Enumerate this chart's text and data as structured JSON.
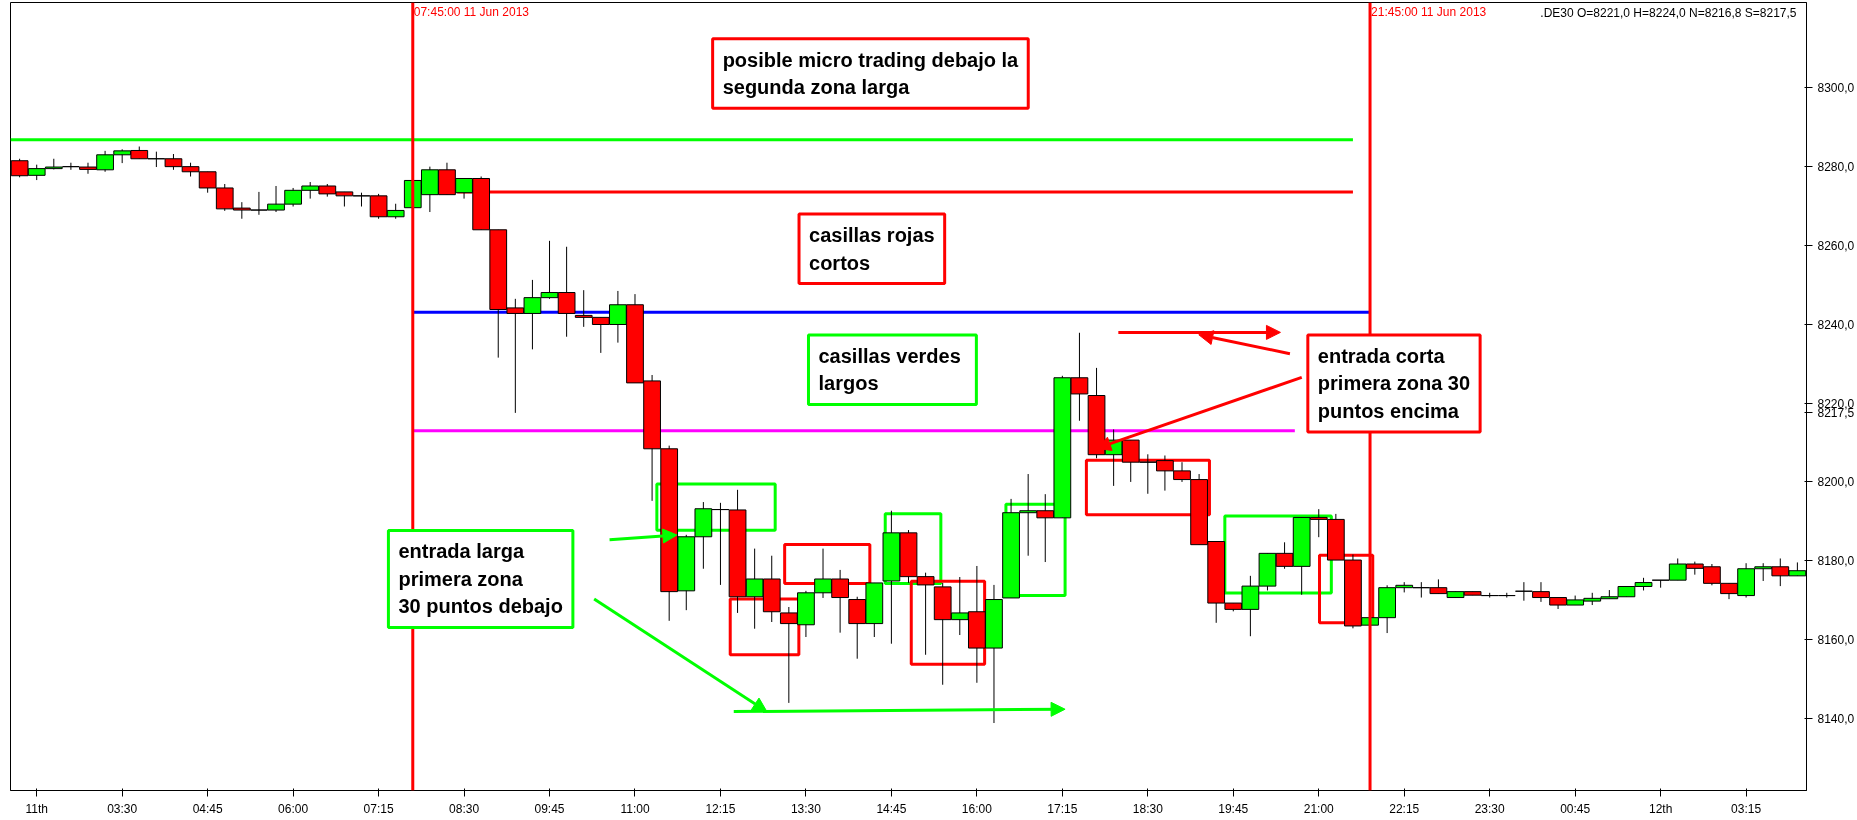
{
  "chart_data": {
    "type": "candlestick",
    "x": [
      "2013-06-11T02:00",
      "2013-06-11T02:15",
      "2013-06-11T02:30",
      "2013-06-11T02:45",
      "2013-06-11T03:00",
      "2013-06-11T03:15",
      "2013-06-11T03:30",
      "2013-06-11T03:45",
      "2013-06-11T04:00",
      "2013-06-11T04:15",
      "2013-06-11T04:30",
      "2013-06-11T04:45",
      "2013-06-11T05:00",
      "2013-06-11T05:15",
      "2013-06-11T05:30",
      "2013-06-11T05:45",
      "2013-06-11T06:00",
      "2013-06-11T06:15",
      "2013-06-11T06:30",
      "2013-06-11T06:45",
      "2013-06-11T07:00",
      "2013-06-11T07:15",
      "2013-06-11T07:30",
      "2013-06-11T07:45",
      "2013-06-11T08:00",
      "2013-06-11T08:15",
      "2013-06-11T08:30",
      "2013-06-11T08:45",
      "2013-06-11T09:00",
      "2013-06-11T09:15",
      "2013-06-11T09:30",
      "2013-06-11T09:45",
      "2013-06-11T10:00",
      "2013-06-11T10:15",
      "2013-06-11T10:30",
      "2013-06-11T10:45",
      "2013-06-11T11:00",
      "2013-06-11T11:15",
      "2013-06-11T11:30",
      "2013-06-11T11:45",
      "2013-06-11T12:00",
      "2013-06-11T12:15",
      "2013-06-11T12:30",
      "2013-06-11T12:45",
      "2013-06-11T13:00",
      "2013-06-11T13:15",
      "2013-06-11T13:30",
      "2013-06-11T13:45",
      "2013-06-11T14:00",
      "2013-06-11T14:15",
      "2013-06-11T14:30",
      "2013-06-11T14:45",
      "2013-06-11T15:00",
      "2013-06-11T15:15",
      "2013-06-11T15:30",
      "2013-06-11T15:45",
      "2013-06-11T16:00",
      "2013-06-11T16:15",
      "2013-06-11T16:30",
      "2013-06-11T16:45",
      "2013-06-11T17:00",
      "2013-06-11T17:15",
      "2013-06-11T17:30",
      "2013-06-11T17:45",
      "2013-06-11T18:00",
      "2013-06-11T18:15",
      "2013-06-11T18:30",
      "2013-06-11T18:45",
      "2013-06-11T19:00",
      "2013-06-11T19:15",
      "2013-06-11T19:30",
      "2013-06-11T19:45",
      "2013-06-11T20:00",
      "2013-06-11T20:15",
      "2013-06-11T20:30",
      "2013-06-11T20:45",
      "2013-06-11T21:00",
      "2013-06-11T21:15",
      "2013-06-11T21:30",
      "2013-06-11T21:45",
      "2013-06-11T22:00",
      "2013-06-11T22:15",
      "2013-06-11T22:30",
      "2013-06-11T22:45",
      "2013-06-11T23:00",
      "2013-06-11T23:15",
      "2013-06-11T23:30",
      "2013-06-11T23:45",
      "2013-06-12T00:00",
      "2013-06-12T00:15",
      "2013-06-12T00:30",
      "2013-06-12T00:45",
      "2013-06-12T01:00",
      "2013-06-12T01:15",
      "2013-06-12T01:30",
      "2013-06-12T01:45",
      "2013-06-12T02:00",
      "2013-06-12T02:15",
      "2013-06-12T02:30",
      "2013-06-12T02:45",
      "2013-06-12T03:00",
      "2013-06-12T03:15",
      "2013-06-12T03:30",
      "2013-06-12T03:45",
      "2013-06-12T04:00"
    ],
    "ohlc": [
      [
        8281.4,
        8281.9,
        8277.2,
        8277.6
      ],
      [
        8277.7,
        8280.4,
        8276.5,
        8279.4
      ],
      [
        8279.4,
        8281.9,
        8279.2,
        8279.8
      ],
      [
        8279.9,
        8280.9,
        8279.1,
        8279.9
      ],
      [
        8279.8,
        8280.9,
        8278.1,
        8279.2
      ],
      [
        8279.1,
        8283.9,
        8278.6,
        8282.9
      ],
      [
        8282.9,
        8284.3,
        8280.8,
        8283.9
      ],
      [
        8284.0,
        8285.0,
        8281.9,
        8281.9
      ],
      [
        8281.9,
        8283.7,
        8279.8,
        8281.9
      ],
      [
        8281.9,
        8283.1,
        8279.1,
        8279.9
      ],
      [
        8279.9,
        8280.9,
        8277.4,
        8278.6
      ],
      [
        8278.6,
        8278.6,
        8273.3,
        8274.5
      ],
      [
        8274.5,
        8275.5,
        8268.7,
        8269.2
      ],
      [
        8269.4,
        8270.9,
        8266.7,
        8268.9
      ],
      [
        8268.9,
        8273.5,
        8267.7,
        8268.9
      ],
      [
        8268.9,
        8275.0,
        8268.4,
        8270.4
      ],
      [
        8270.4,
        8274.5,
        8269.8,
        8273.9
      ],
      [
        8273.9,
        8276.0,
        8271.8,
        8275.0
      ],
      [
        8275.0,
        8275.5,
        8272.3,
        8273.0
      ],
      [
        8273.5,
        8273.5,
        8269.8,
        8272.5
      ],
      [
        8272.5,
        8273.3,
        8269.8,
        8272.5
      ],
      [
        8272.5,
        8273.0,
        8266.7,
        8267.2
      ],
      [
        8267.2,
        8270.5,
        8266.7,
        8268.8
      ],
      [
        8269.5,
        8276.4,
        8269.2,
        8276.4
      ],
      [
        8272.8,
        8279.9,
        8268.4,
        8279.1
      ],
      [
        8279.1,
        8280.9,
        8272.8,
        8272.8
      ],
      [
        8273.3,
        8276.9,
        8271.8,
        8276.9
      ],
      [
        8276.9,
        8277.4,
        8263.9,
        8263.9
      ],
      [
        8263.9,
        8263.9,
        8231.5,
        8243.7
      ],
      [
        8244.1,
        8246.4,
        8217.5,
        8242.7
      ],
      [
        8242.7,
        8251.2,
        8233.6,
        8246.7
      ],
      [
        8246.7,
        8261.1,
        8246.4,
        8248.0
      ],
      [
        8248.0,
        8259.6,
        8236.8,
        8242.7
      ],
      [
        8242.2,
        8248.6,
        8239.3,
        8241.7
      ],
      [
        8241.7,
        8241.7,
        8232.7,
        8239.9
      ],
      [
        8239.9,
        8248.4,
        8235.3,
        8244.9
      ],
      [
        8244.9,
        8247.6,
        8225.1,
        8225.1
      ],
      [
        8225.6,
        8227.1,
        8195.2,
        8208.4
      ],
      [
        8208.4,
        8209.2,
        8164.8,
        8172.2
      ],
      [
        8172.4,
        8186.6,
        8167.5,
        8186.1
      ],
      [
        8186.1,
        8194.9,
        8178.0,
        8193.2
      ],
      [
        8193.0,
        8194.7,
        8173.9,
        8193.0
      ],
      [
        8192.9,
        8198.0,
        8166.8,
        8170.9
      ],
      [
        8170.9,
        8183.1,
        8162.8,
        8175.4
      ],
      [
        8175.4,
        8181.3,
        8164.5,
        8167.1
      ],
      [
        8166.8,
        8168.3,
        8144.0,
        8164.1
      ],
      [
        8163.8,
        8172.4,
        8160.7,
        8171.9
      ],
      [
        8171.9,
        8183.1,
        8170.6,
        8175.4
      ],
      [
        8175.4,
        8177.7,
        8161.8,
        8170.7
      ],
      [
        8170.2,
        8170.9,
        8155.2,
        8164.1
      ],
      [
        8164.1,
        8174.4,
        8160.7,
        8174.4
      ],
      [
        8174.9,
        8192.7,
        8159.0,
        8187.1
      ],
      [
        8187.1,
        8187.8,
        8174.4,
        8176.0
      ],
      [
        8176.0,
        8177.0,
        8156.2,
        8173.9
      ],
      [
        8173.4,
        8174.4,
        8148.6,
        8165.1
      ],
      [
        8165.1,
        8175.9,
        8161.2,
        8166.8
      ],
      [
        8167.1,
        8178.7,
        8149.1,
        8157.9
      ],
      [
        8157.9,
        8173.9,
        8138.9,
        8170.2
      ],
      [
        8170.6,
        8195.7,
        8170.6,
        8192.2
      ],
      [
        8192.2,
        8202.0,
        8181.3,
        8192.7
      ],
      [
        8192.7,
        8196.9,
        8179.7,
        8190.9
      ],
      [
        8190.9,
        8226.9,
        8190.9,
        8226.4
      ],
      [
        8226.4,
        8237.8,
        8215.5,
        8222.3
      ],
      [
        8221.9,
        8228.9,
        8206.0,
        8206.9
      ],
      [
        8206.9,
        8213.3,
        8199.0,
        8210.6
      ],
      [
        8210.6,
        8210.6,
        8200.0,
        8205.0
      ],
      [
        8205.0,
        8207.0,
        8197.0,
        8205.0
      ],
      [
        8205.4,
        8206.7,
        8197.8,
        8202.8
      ],
      [
        8202.8,
        8205.0,
        8200.0,
        8200.6
      ],
      [
        8200.6,
        8202.0,
        8184.1,
        8184.1
      ],
      [
        8184.9,
        8184.9,
        8164.3,
        8169.3
      ],
      [
        8169.3,
        8169.3,
        8167.2,
        8167.7
      ],
      [
        8167.7,
        8176.2,
        8160.9,
        8173.6
      ],
      [
        8173.6,
        8181.9,
        8172.5,
        8181.9
      ],
      [
        8181.9,
        8184.7,
        8178.0,
        8178.6
      ],
      [
        8178.6,
        8191.0,
        8171.4,
        8191.0
      ],
      [
        8191.0,
        8193.1,
        8186.0,
        8190.5
      ],
      [
        8190.5,
        8191.9,
        8180.2,
        8180.2
      ],
      [
        8180.2,
        8181.6,
        8162.9,
        8163.5
      ],
      [
        8163.7,
        8165.6,
        8163.7,
        8165.6
      ],
      [
        8165.6,
        8173.8,
        8161.7,
        8173.2
      ],
      [
        8173.2,
        8174.6,
        8172.0,
        8173.8
      ],
      [
        8173.2,
        8174.6,
        8170.7,
        8173.2
      ],
      [
        8173.2,
        8175.3,
        8171.7,
        8171.7
      ],
      [
        8170.7,
        8172.2,
        8170.7,
        8172.2
      ],
      [
        8172.2,
        8172.2,
        8171.3,
        8171.3
      ],
      [
        8171.2,
        8171.9,
        8170.7,
        8171.2
      ],
      [
        8171.2,
        8171.9,
        8170.7,
        8171.2
      ],
      [
        8172.3,
        8174.6,
        8169.9,
        8172.3
      ],
      [
        8172.2,
        8174.6,
        8169.6,
        8170.7
      ],
      [
        8170.7,
        8170.7,
        8167.8,
        8168.8
      ],
      [
        8168.8,
        8171.2,
        8168.8,
        8170.1
      ],
      [
        8169.8,
        8171.9,
        8168.8,
        8170.5
      ],
      [
        8170.4,
        8172.6,
        8170.4,
        8170.9
      ],
      [
        8170.9,
        8173.5,
        8170.9,
        8173.5
      ],
      [
        8173.5,
        8175.7,
        8172.5,
        8174.5
      ],
      [
        8175.1,
        8175.1,
        8173.2,
        8175.1
      ],
      [
        8175.1,
        8180.6,
        8175.1,
        8179.2
      ],
      [
        8179.2,
        8179.8,
        8176.5,
        8178.1
      ],
      [
        8178.5,
        8179.2,
        8173.8,
        8174.3
      ],
      [
        8174.3,
        8174.3,
        8170.3,
        8171.7
      ],
      [
        8171.2,
        8179.4,
        8170.7,
        8178.0
      ],
      [
        8178.0,
        8179.4,
        8174.9,
        8178.5
      ],
      [
        8178.5,
        8180.6,
        8173.6,
        8176.2
      ],
      [
        8176.2,
        8179.6,
        8176.2,
        8177.5
      ]
    ],
    "colors": [
      "#ff0000",
      "#00ff00",
      "#00ff00",
      "#000000",
      "#ff0000",
      "#00ff00",
      "#00ff00",
      "#ff0000",
      "#000000",
      "#ff0000",
      "#ff0000",
      "#ff0000",
      "#ff0000",
      "#ff0000",
      "#000000",
      "#00ff00",
      "#00ff00",
      "#00ff00",
      "#ff0000",
      "#ff0000",
      "#000000",
      "#ff0000",
      "#00ff00",
      "#00ff00",
      "#00ff00",
      "#ff0000",
      "#00ff00",
      "#ff0000",
      "#ff0000",
      "#ff0000",
      "#00ff00",
      "#00ff00",
      "#ff0000",
      "#ff0000",
      "#ff0000",
      "#00ff00",
      "#ff0000",
      "#ff0000",
      "#ff0000",
      "#00ff00",
      "#00ff00",
      "#000000",
      "#ff0000",
      "#00ff00",
      "#ff0000",
      "#ff0000",
      "#00ff00",
      "#00ff00",
      "#ff0000",
      "#ff0000",
      "#00ff00",
      "#00ff00",
      "#ff0000",
      "#ff0000",
      "#ff0000",
      "#00ff00",
      "#ff0000",
      "#00ff00",
      "#00ff00",
      "#00ff00",
      "#ff0000",
      "#00ff00",
      "#ff0000",
      "#ff0000",
      "#00ff00",
      "#ff0000",
      "#000000",
      "#ff0000",
      "#ff0000",
      "#ff0000",
      "#ff0000",
      "#ff0000",
      "#00ff00",
      "#00ff00",
      "#ff0000",
      "#00ff00",
      "#ff0000",
      "#ff0000",
      "#ff0000",
      "#00ff00",
      "#00ff00",
      "#00ff00",
      "#000000",
      "#ff0000",
      "#00ff00",
      "#ff0000",
      "#000000",
      "#000000",
      "#000000",
      "#ff0000",
      "#ff0000",
      "#00ff00",
      "#00ff00",
      "#00ff00",
      "#00ff00",
      "#00ff00",
      "#000000",
      "#00ff00",
      "#ff0000",
      "#ff0000",
      "#ff0000",
      "#00ff00",
      "#00ff00",
      "#ff0000",
      "#00ff00"
    ],
    "series": [
      {
        "type": "line",
        "color": "#00ff00",
        "x": [
          "2013-06-11T01:52",
          "2013-06-11T21:30"
        ],
        "values": [
          8286.7,
          8286.7
        ]
      },
      {
        "type": "line",
        "color": "#ff0000",
        "x": [
          "2013-06-11T08:24",
          "2013-06-11T21:30"
        ],
        "values": [
          8273.5,
          8273.5
        ]
      },
      {
        "type": "line",
        "color": "#0000ff",
        "x": [
          "2013-06-11T07:45",
          "2013-06-11T21:45"
        ],
        "values": [
          8243.0,
          8243.0
        ]
      },
      {
        "type": "line",
        "color": "#ff00ff",
        "x": [
          "2013-06-11T07:45",
          "2013-06-11T20:39"
        ],
        "values": [
          8213.0,
          8213.0
        ]
      }
    ],
    "ref_lines": [
      {
        "axis": "x",
        "value": "2013-06-11T07:45",
        "label": "07:45:00 11 Jun 2013",
        "color": "#ff0000"
      },
      {
        "axis": "x",
        "value": "2013-06-11T21:45",
        "label": "21:45:00 11 Jun 2013",
        "color": "#ff0000"
      }
    ],
    "annotations": [
      "posible micro trading debajo la\nsegunda zona larga",
      "casillas rojas\ncortos",
      " casillas verdes\nlargos",
      {
        "text": "entrada corta\nprimera zona 30\npuntos encima",
        "x": "2013-06-11T17:45",
        "y": 8208.5
      },
      "entrada larga\nprimera zona\n30 puntos debajo",
      ".DE30 O=8221,0 H=8224,0 N=8216,8 S=8217,5"
    ],
    "xlim": [
      "2013-06-11T01:52",
      "2013-06-12T04:08"
    ],
    "ylim": [
      8121.8,
      8321.5
    ],
    "xticks": [
      {
        "value": "2013-06-11T02:15",
        "label": "11th"
      },
      {
        "value": "2013-06-11T03:30",
        "label": "03:30"
      },
      {
        "value": "2013-06-11T04:45",
        "label": "04:45"
      },
      {
        "value": "2013-06-11T06:00",
        "label": "06:00"
      },
      {
        "value": "2013-06-11T07:15",
        "label": "07:15"
      },
      {
        "value": "2013-06-11T08:30",
        "label": "08:30"
      },
      {
        "value": "2013-06-11T09:45",
        "label": "09:45"
      },
      {
        "value": "2013-06-11T11:00",
        "label": "11:00"
      },
      {
        "value": "2013-06-11T12:15",
        "label": "12:15"
      },
      {
        "value": "2013-06-11T13:30",
        "label": "13:30"
      },
      {
        "value": "2013-06-11T14:45",
        "label": "14:45"
      },
      {
        "value": "2013-06-11T16:00",
        "label": "16:00"
      },
      {
        "value": "2013-06-11T17:15",
        "label": "17:15"
      },
      {
        "value": "2013-06-11T18:30",
        "label": "18:30"
      },
      {
        "value": "2013-06-11T19:45",
        "label": "19:45"
      },
      {
        "value": "2013-06-11T21:00",
        "label": "21:00"
      },
      {
        "value": "2013-06-11T22:15",
        "label": "22:15"
      },
      {
        "value": "2013-06-11T23:30",
        "label": "23:30"
      },
      {
        "value": "2013-06-12T00:45",
        "label": "00:45"
      },
      {
        "value": "2013-06-12T02:00",
        "label": "12th"
      },
      {
        "value": "2013-06-12T03:15",
        "label": "03:15"
      }
    ],
    "yticks": [
      {
        "value": 8140,
        "label": "8140,0"
      },
      {
        "value": 8160,
        "label": "8160,0"
      },
      {
        "value": 8180,
        "label": "8180,0"
      },
      {
        "value": 8200,
        "label": "8200,0"
      },
      {
        "value": 8217.5,
        "label": "8217,5"
      },
      {
        "value": 8220,
        "label": "8220,0"
      },
      {
        "value": 8240,
        "label": "8240,0"
      },
      {
        "value": 8260,
        "label": "8260,0"
      },
      {
        "value": 8280,
        "label": "8280,0"
      },
      {
        "value": 8300,
        "label": "8300,0"
      }
    ],
    "grid": false
  }
}
